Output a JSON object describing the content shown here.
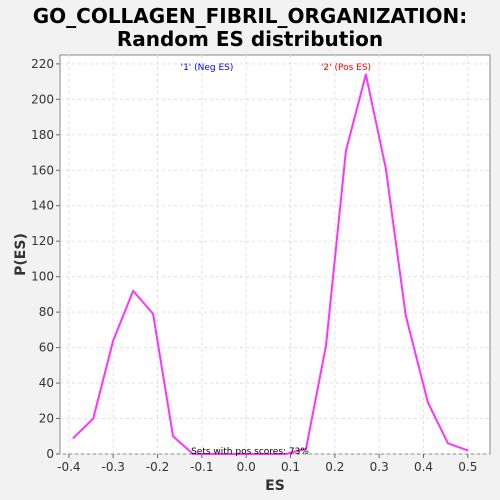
{
  "chart_data": {
    "type": "line",
    "title": "GO_COLLAGEN_FIBRIL_ORGANIZATION:",
    "subtitle": "Random ES distribution",
    "xlabel": "ES",
    "ylabel": "P(ES)",
    "xlim": [
      -0.42,
      0.55
    ],
    "ylim": [
      0,
      225
    ],
    "xticks": [
      -0.4,
      -0.3,
      -0.2,
      -0.1,
      0.0,
      0.1,
      0.2,
      0.3,
      0.4,
      0.5
    ],
    "xtick_labels": [
      "-0.4",
      "-0.3",
      "-0.2",
      "-0.1",
      "0.0",
      "0.1",
      "0.2",
      "0.3",
      "0.4",
      "0.5"
    ],
    "yticks": [
      0,
      20,
      40,
      60,
      80,
      100,
      120,
      140,
      160,
      180,
      200,
      220
    ],
    "grid": true,
    "series": [
      {
        "color": "#ff33ff",
        "x": [
          -0.39,
          -0.345,
          -0.3,
          -0.255,
          -0.21,
          -0.165,
          -0.12,
          -0.075,
          -0.03,
          0.015,
          0.06,
          0.09,
          0.135,
          0.18,
          0.225,
          0.27,
          0.315,
          0.36,
          0.41,
          0.455,
          0.5
        ],
        "y": [
          9,
          20,
          64,
          92,
          79,
          10,
          0,
          0,
          0,
          0,
          0,
          0,
          3,
          61,
          171,
          214,
          161,
          78,
          29,
          6,
          2
        ]
      }
    ],
    "annotations": [
      {
        "text": "'1' (Neg ES)",
        "color": "#0000ff"
      },
      {
        "text": "'2' (Pos ES)",
        "color": "#ff0000"
      },
      {
        "text": "Sets with pos scores: 73%",
        "color": "#000000"
      }
    ]
  }
}
